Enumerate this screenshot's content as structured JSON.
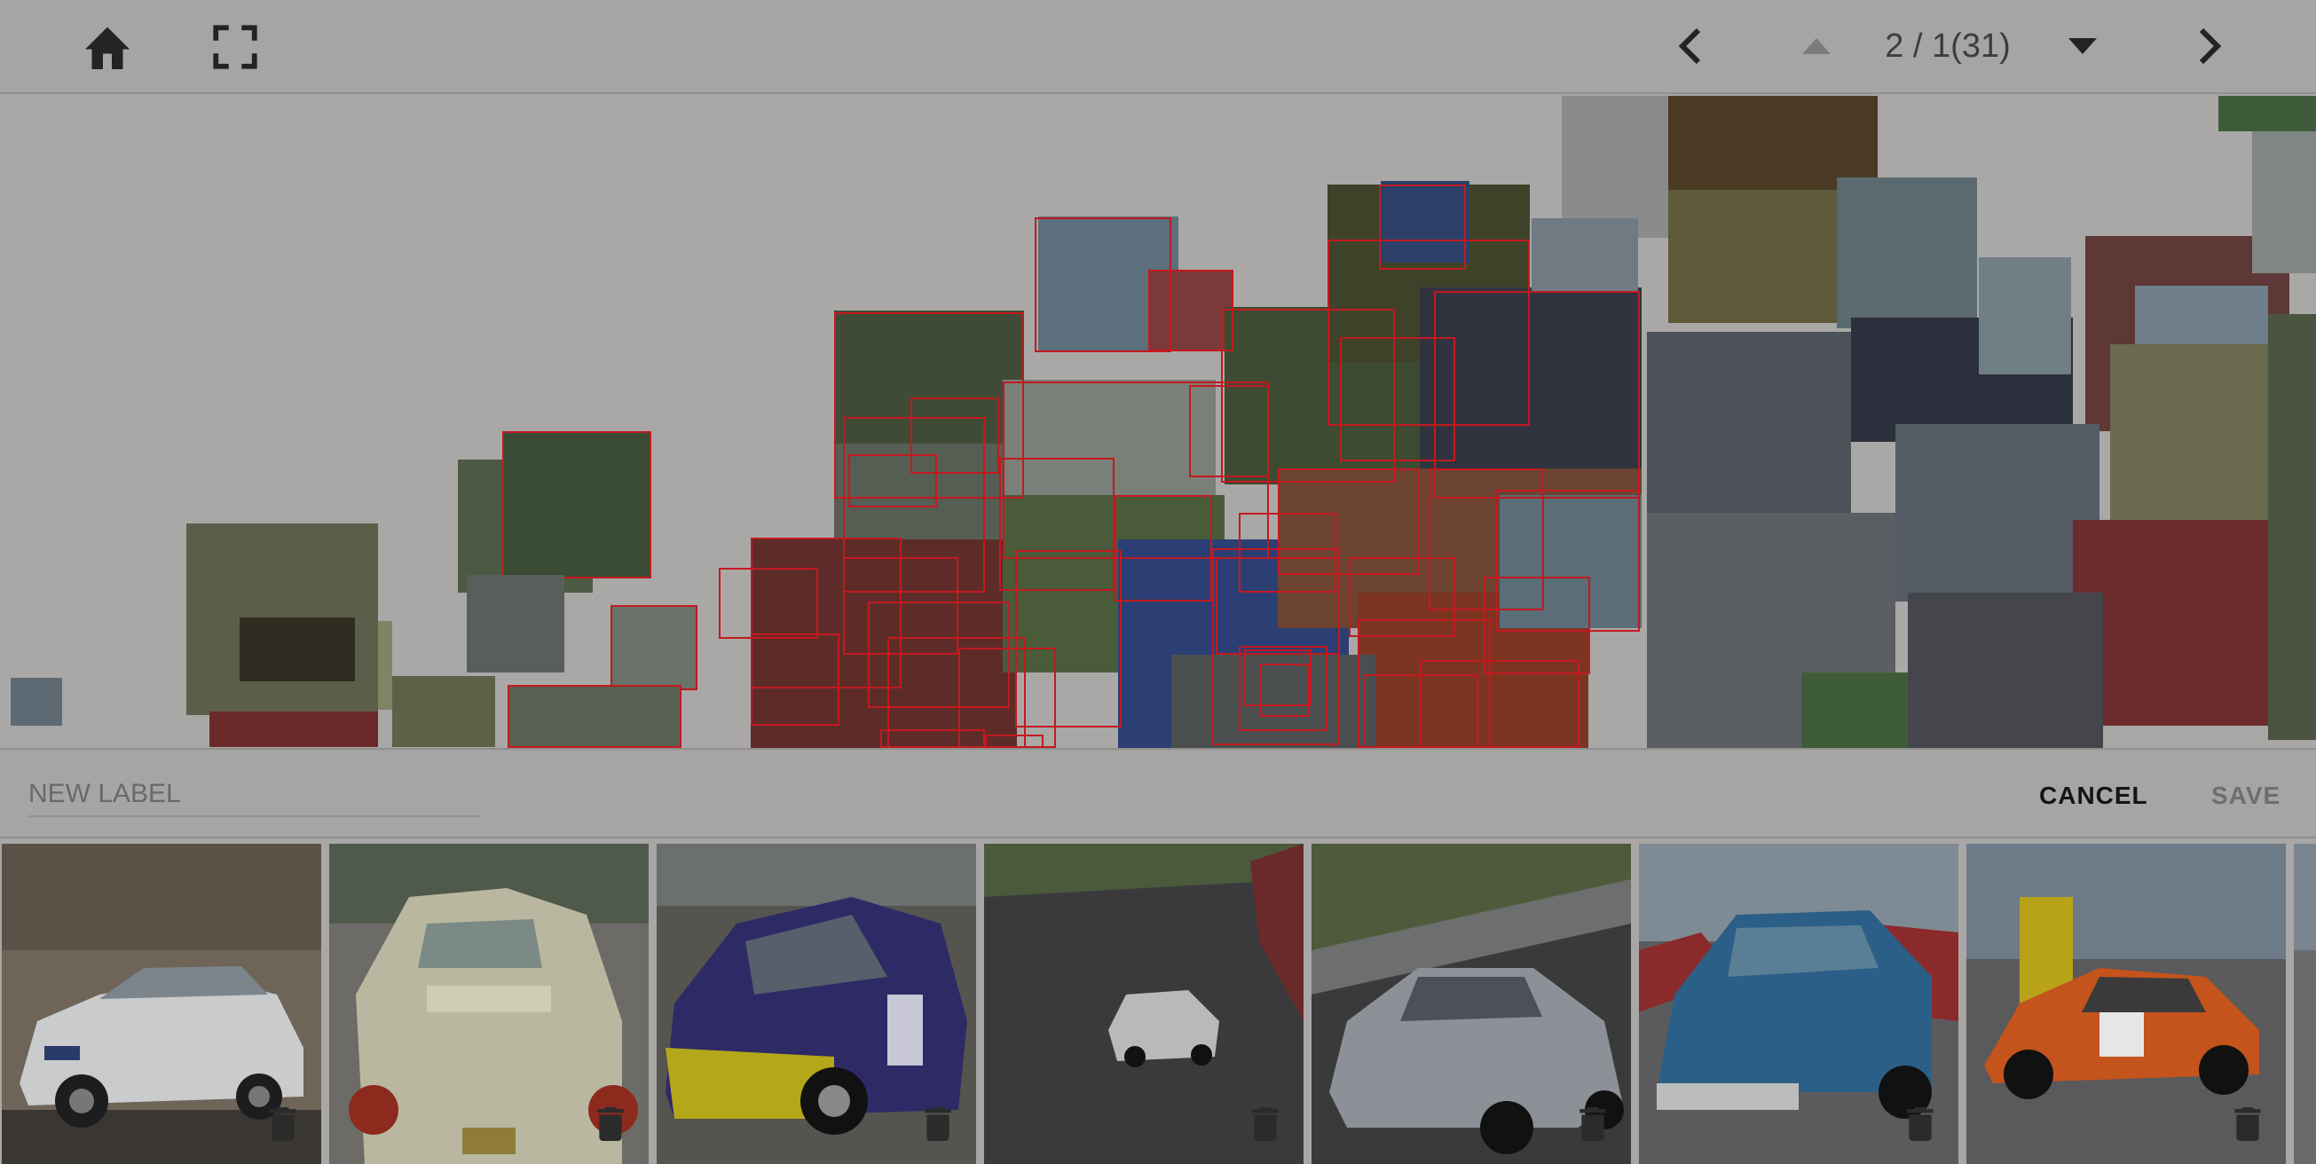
{
  "toolbar": {
    "home_icon": "home-icon",
    "fullscreen_icon": "fullscreen-icon",
    "prev_icon": "chevron-left-icon",
    "up_icon": "triangle-up-icon",
    "down_icon": "triangle-down-icon",
    "next_icon": "chevron-right-icon",
    "page_indicator": "2 / 1(31)"
  },
  "label_bar": {
    "placeholder": "NEW LABEL",
    "value": "",
    "cancel_label": "CANCEL",
    "save_label": "SAVE"
  },
  "gallery": {
    "items": [
      {
        "subject": "white-wagon",
        "car_color": "#e9eaec"
      },
      {
        "subject": "cream-convertible",
        "car_color": "#ecebd8"
      },
      {
        "subject": "purple-rally-car",
        "car_color": "#3a3478"
      },
      {
        "subject": "white-porsche-track",
        "car_color": "#e6e6e6"
      },
      {
        "subject": "silver-skyline",
        "car_color": "#a7abb3"
      },
      {
        "subject": "blue-classic-pickup",
        "car_color": "#3b7fae"
      },
      {
        "subject": "orange-porsche-762",
        "car_color": "#e9621f"
      }
    ]
  },
  "colors": {
    "selection_border": "#c4191f",
    "overlay_dim": "#a8a7a6"
  }
}
